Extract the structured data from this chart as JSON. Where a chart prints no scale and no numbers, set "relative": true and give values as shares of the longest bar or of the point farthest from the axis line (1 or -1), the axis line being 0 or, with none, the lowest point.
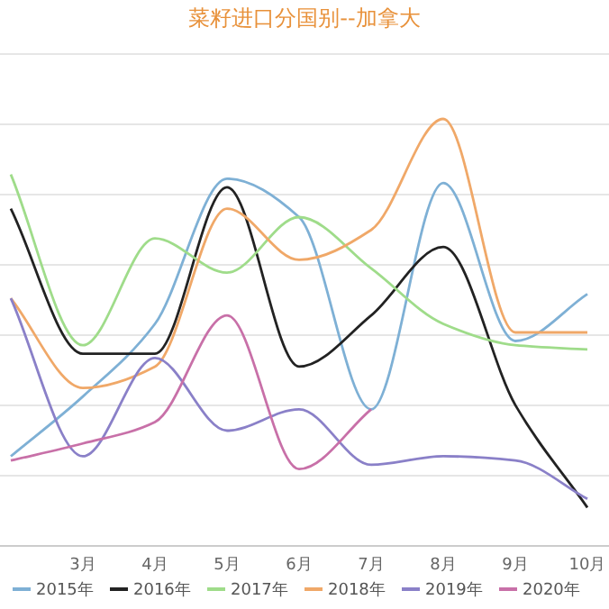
{
  "chart_data": {
    "type": "line",
    "title": "菜籽进口分国别--加拿大",
    "relative": true,
    "grid": "y",
    "legend": "bottom",
    "marker": "none",
    "line_style": "solid",
    "categories": [
      null,
      "3月",
      "4月",
      "5月",
      "6月",
      "7月",
      "8月",
      "9月",
      "10月"
    ],
    "series": [
      {
        "name": "2015年",
        "color": "#7eb0d5",
        "values": [
          0.21,
          0.35,
          0.52,
          0.86,
          0.77,
          0.32,
          0.85,
          0.48,
          0.59
        ]
      },
      {
        "name": "2016年",
        "color": "#222222",
        "values": [
          0.79,
          0.45,
          0.45,
          0.84,
          0.42,
          0.54,
          0.7,
          0.33,
          0.09
        ]
      },
      {
        "name": "2017年",
        "color": "#9fdc8a",
        "values": [
          0.87,
          0.47,
          0.72,
          0.64,
          0.77,
          0.65,
          0.52,
          0.47,
          0.46
        ]
      },
      {
        "name": "2018年",
        "color": "#f0a868",
        "values": [
          0.58,
          0.37,
          0.42,
          0.79,
          0.67,
          0.74,
          1,
          0.5,
          0.5
        ]
      },
      {
        "name": "2019年",
        "color": "#8a80c8",
        "values": [
          0.58,
          0.21,
          0.44,
          0.27,
          0.32,
          0.19,
          0.21,
          0.2,
          0.11
        ]
      },
      {
        "name": "2020年",
        "color": "#c870a8",
        "values": [
          0.2,
          0.24,
          0.29,
          0.54,
          0.18,
          0.32,
          null,
          null,
          null
        ]
      }
    ]
  }
}
